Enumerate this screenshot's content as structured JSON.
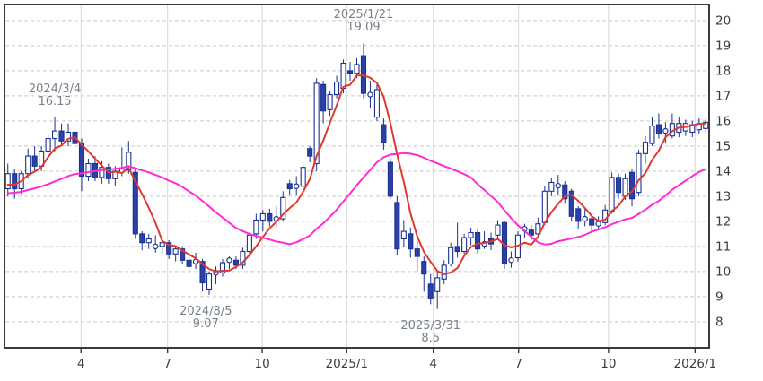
{
  "chart_data": {
    "type": "candlestick",
    "title": "",
    "period": "weekly",
    "legend": "none",
    "x_axis": {
      "tick_labels": [
        "4",
        "7",
        "10",
        "2025/1",
        "4",
        "7",
        "10",
        "2026/1"
      ],
      "tick_weeks": [
        11.4,
        24.3,
        38.4,
        51.0,
        63.9,
        76.6,
        90.0,
        102.9
      ]
    },
    "y_axis": {
      "side": "right",
      "ticks": [
        8,
        9,
        10,
        11,
        12,
        13,
        14,
        15,
        16,
        17,
        18,
        19,
        20
      ],
      "range_top": 20.64,
      "range_bottom": 6.96
    },
    "grid": {
      "horizontal": "dashed",
      "vertical": "solid"
    },
    "candles": [
      [
        13.3,
        14.3,
        13.0,
        13.9
      ],
      [
        13.9,
        14.1,
        12.9,
        13.3
      ],
      [
        13.3,
        14.0,
        13.1,
        13.9
      ],
      [
        13.9,
        14.9,
        13.7,
        14.6
      ],
      [
        14.6,
        15.0,
        14.0,
        14.2
      ],
      [
        14.2,
        15.0,
        14.0,
        14.8
      ],
      [
        14.8,
        15.5,
        14.5,
        15.3
      ],
      [
        15.3,
        16.15,
        14.8,
        15.6
      ],
      [
        15.6,
        15.9,
        15.0,
        15.2
      ],
      [
        15.2,
        15.9,
        15.0,
        15.55
      ],
      [
        15.55,
        15.8,
        14.9,
        15.1
      ],
      [
        15.1,
        15.3,
        13.2,
        13.8
      ],
      [
        13.8,
        14.5,
        13.6,
        14.3
      ],
      [
        14.3,
        14.6,
        13.6,
        13.75
      ],
      [
        13.75,
        14.4,
        13.5,
        14.15
      ],
      [
        14.15,
        14.3,
        13.5,
        13.7
      ],
      [
        13.7,
        14.2,
        13.4,
        14.0
      ],
      [
        14.02,
        14.95,
        13.8,
        14.02
      ],
      [
        14.05,
        15.2,
        13.9,
        14.75
      ],
      [
        13.95,
        14.1,
        11.3,
        11.5
      ],
      [
        11.5,
        11.6,
        10.85,
        11.15
      ],
      [
        11.15,
        11.5,
        10.9,
        11.3
      ],
      [
        11.0,
        11.45,
        10.75,
        11.0
      ],
      [
        11.0,
        11.3,
        10.7,
        11.15
      ],
      [
        11.15,
        11.25,
        10.5,
        10.7
      ],
      [
        10.7,
        11.0,
        10.4,
        10.9
      ],
      [
        10.9,
        11.0,
        10.3,
        10.45
      ],
      [
        10.45,
        10.7,
        10.0,
        10.2
      ],
      [
        10.4,
        10.75,
        10.1,
        10.4
      ],
      [
        10.4,
        10.5,
        9.2,
        9.55
      ],
      [
        9.3,
        10.0,
        9.07,
        9.9
      ],
      [
        9.95,
        10.2,
        9.5,
        9.95
      ],
      [
        9.95,
        10.5,
        9.8,
        10.35
      ],
      [
        10.45,
        10.6,
        10.1,
        10.45
      ],
      [
        10.45,
        10.6,
        10.1,
        10.25
      ],
      [
        10.25,
        10.95,
        10.1,
        10.8
      ],
      [
        10.8,
        11.55,
        10.6,
        11.45
      ],
      [
        11.5,
        12.3,
        11.3,
        12.05
      ],
      [
        12.05,
        12.45,
        11.6,
        12.3
      ],
      [
        12.3,
        12.5,
        11.8,
        12.0
      ],
      [
        12.1,
        12.6,
        11.8,
        12.1
      ],
      [
        12.1,
        13.2,
        12.0,
        12.95
      ],
      [
        13.5,
        13.65,
        13.05,
        13.3
      ],
      [
        13.4,
        13.8,
        13.05,
        13.4
      ],
      [
        13.4,
        14.25,
        13.3,
        14.15
      ],
      [
        14.9,
        15.0,
        14.35,
        14.6
      ],
      [
        14.3,
        17.7,
        14.0,
        17.5
      ],
      [
        17.45,
        17.6,
        15.9,
        16.4
      ],
      [
        16.45,
        17.2,
        16.2,
        17.05
      ],
      [
        17.05,
        17.8,
        16.9,
        17.55
      ],
      [
        17.3,
        18.45,
        17.1,
        18.3
      ],
      [
        18.0,
        18.35,
        17.6,
        17.9
      ],
      [
        17.9,
        18.5,
        17.7,
        18.25
      ],
      [
        18.6,
        19.09,
        16.9,
        17.1
      ],
      [
        17.05,
        17.6,
        16.5,
        17.05
      ],
      [
        16.15,
        17.45,
        16.0,
        17.25
      ],
      [
        15.85,
        16.1,
        14.85,
        15.15
      ],
      [
        14.35,
        14.5,
        12.9,
        13.0
      ],
      [
        12.75,
        13.0,
        10.65,
        10.9
      ],
      [
        11.3,
        12.05,
        11.0,
        11.6
      ],
      [
        11.5,
        11.75,
        10.55,
        10.9
      ],
      [
        10.9,
        11.2,
        10.0,
        10.6
      ],
      [
        10.4,
        10.6,
        9.2,
        9.9
      ],
      [
        9.5,
        9.9,
        8.7,
        8.95
      ],
      [
        9.2,
        10.0,
        8.5,
        9.75
      ],
      [
        9.7,
        10.45,
        9.5,
        10.25
      ],
      [
        10.3,
        11.15,
        10.2,
        10.95
      ],
      [
        11.0,
        11.95,
        10.55,
        10.8
      ],
      [
        10.8,
        11.5,
        10.7,
        11.35
      ],
      [
        11.35,
        11.75,
        11.05,
        11.55
      ],
      [
        11.55,
        11.7,
        10.7,
        10.9
      ],
      [
        11.1,
        11.6,
        10.9,
        11.1
      ],
      [
        11.3,
        11.55,
        10.85,
        11.1
      ],
      [
        11.45,
        12.05,
        11.3,
        11.85
      ],
      [
        11.95,
        12.0,
        10.1,
        10.3
      ],
      [
        10.45,
        10.8,
        10.15,
        10.45
      ],
      [
        10.55,
        11.6,
        10.4,
        11.45
      ],
      [
        11.7,
        11.9,
        11.35,
        11.7
      ],
      [
        11.65,
        11.85,
        11.25,
        11.45
      ],
      [
        11.5,
        12.15,
        11.4,
        11.9
      ],
      [
        11.95,
        13.4,
        11.85,
        13.2
      ],
      [
        13.2,
        13.75,
        13.0,
        13.55
      ],
      [
        13.42,
        13.85,
        13.05,
        13.42
      ],
      [
        13.45,
        13.6,
        12.7,
        12.9
      ],
      [
        13.2,
        13.3,
        12.0,
        12.2
      ],
      [
        12.5,
        12.6,
        11.7,
        12.0
      ],
      [
        12.1,
        12.5,
        11.8,
        12.1
      ],
      [
        12.1,
        12.3,
        11.6,
        11.85
      ],
      [
        11.9,
        12.2,
        11.7,
        11.9
      ],
      [
        11.95,
        12.65,
        11.85,
        12.45
      ],
      [
        12.4,
        13.95,
        12.3,
        13.75
      ],
      [
        13.75,
        13.9,
        12.9,
        13.15
      ],
      [
        13.0,
        13.9,
        12.85,
        13.7
      ],
      [
        13.95,
        14.1,
        12.6,
        12.9
      ],
      [
        13.15,
        14.85,
        13.0,
        14.7
      ],
      [
        14.7,
        15.4,
        14.3,
        15.15
      ],
      [
        15.1,
        16.15,
        15.0,
        15.8
      ],
      [
        15.85,
        16.3,
        15.3,
        15.5
      ],
      [
        15.6,
        15.95,
        15.1,
        15.6
      ],
      [
        15.4,
        16.3,
        15.3,
        15.9
      ],
      [
        15.55,
        16.15,
        15.35,
        15.9
      ],
      [
        15.6,
        16.05,
        15.4,
        15.9
      ],
      [
        15.55,
        16.0,
        15.35,
        15.85
      ],
      [
        15.65,
        16.1,
        15.5,
        15.9
      ],
      [
        15.7,
        16.1,
        15.55,
        15.95
      ]
    ],
    "moving_averages": [
      {
        "name": "short-term-ma",
        "period": 5,
        "color": "#e0392e"
      },
      {
        "name": "long-term-ma",
        "period": 24,
        "color": "#ff2ad5"
      }
    ],
    "ma_warmup_closes": [
      13.1,
      12.9,
      13.0,
      12.8,
      12.7,
      12.9,
      13.1,
      13.0,
      12.8,
      12.9,
      13.1,
      13.2,
      13.0,
      12.9,
      13.1,
      13.2,
      13.3,
      13.1,
      13.2,
      13.4,
      13.3,
      13.2,
      13.4,
      13.5
    ],
    "annotations": [
      {
        "date": "2024/3/4",
        "label": "16.15",
        "value": 16.15,
        "week": 7,
        "placement": "above"
      },
      {
        "date": "2025/1/21",
        "label": "19.09",
        "value": 19.09,
        "week": 53,
        "placement": "above"
      },
      {
        "date": "2024/8/5",
        "label": "9.07",
        "value": 9.07,
        "week": 29.5,
        "placement": "below"
      },
      {
        "date": "2025/3/31",
        "label": "8.5",
        "value": 8.5,
        "week": 63,
        "placement": "below"
      }
    ],
    "colors": {
      "up_fill": "#ffffff",
      "down_fill": "#2a41a8",
      "candle_stroke": "#1c3091",
      "grid_horizontal": "#c9c9c9",
      "grid_vertical": "#d7d7d7",
      "border": "#3a3a3a",
      "short_ma": "#e0392e",
      "long_ma": "#ff2ad5",
      "axis_label": "#3a3a44",
      "annotation_text": "#78808d"
    }
  }
}
